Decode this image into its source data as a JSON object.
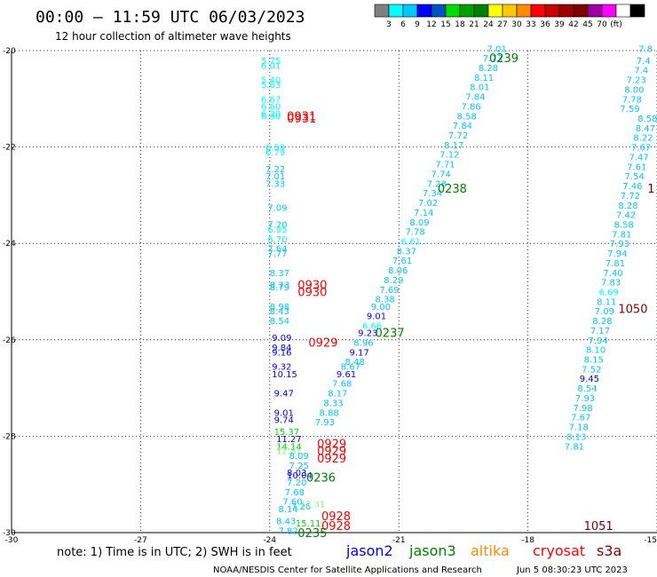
{
  "header": {
    "title": "00:00 — 11:59 UTC 06/03/2023",
    "subtitle": "12 hour collection of altimeter wave heights"
  },
  "colorbar": {
    "colors": [
      "#808080",
      "#00ffff",
      "#00c8ff",
      "#0000ff",
      "#0050c8",
      "#00dc00",
      "#00a000",
      "#008000",
      "#ffff00",
      "#ffc800",
      "#ff8c00",
      "#ff0000",
      "#c80000",
      "#a00000",
      "#800000",
      "#a000a0",
      "#ff00ff",
      "#ffffff",
      "#000000"
    ],
    "labels": [
      "3",
      "6",
      "9",
      "12",
      "15",
      "18",
      "21",
      "24",
      "27",
      "30",
      "33",
      "36",
      "39",
      "42",
      "45",
      "70",
      "(ft)"
    ]
  },
  "footer": {
    "note": "note: 1) Time is in UTC; 2) SWH is in feet",
    "satellites": [
      {
        "name": "jason2",
        "color": "#0000ff"
      },
      {
        "name": "jason3",
        "color": "#008000"
      },
      {
        "name": "altika",
        "color": "#ff8c00"
      },
      {
        "name": "cryosat",
        "color": "#ff0000"
      },
      {
        "name": "s3a",
        "color": "#800000"
      }
    ],
    "credit": "NOAA/NESDIS Center for Satellite Applications and Research",
    "generated": "Jun  5 08:30:23 UTC 2023"
  },
  "chart_data": {
    "type": "scatter",
    "title": "00:00 — 11:59 UTC 06/03/2023",
    "subtitle": "12 hour collection of altimeter wave heights",
    "xlim": [
      -30,
      -15
    ],
    "ylim": [
      -30,
      -20
    ],
    "xticks": [
      "-30",
      "-27",
      "-24",
      "-21",
      "-18",
      "-15"
    ],
    "yticks": [
      "-20",
      "-22",
      "-24",
      "-26",
      "-28",
      "-30"
    ],
    "grid": true,
    "observations": [
      {
        "x": -24.2,
        "y": -20.2,
        "v": "5.75",
        "c": "#00ffff"
      },
      {
        "x": -24.2,
        "y": -20.3,
        "v": "6.01",
        "c": "#00ffff"
      },
      {
        "x": -24.2,
        "y": -20.6,
        "v": "5.40",
        "c": "#00ffff"
      },
      {
        "x": -24.2,
        "y": -20.7,
        "v": "5.63",
        "c": "#00ffff"
      },
      {
        "x": -24.2,
        "y": -21.0,
        "v": "6.67",
        "c": "#00ffff"
      },
      {
        "x": -24.2,
        "y": -21.15,
        "v": "6.60",
        "c": "#00ffff"
      },
      {
        "x": -24.2,
        "y": -21.3,
        "v": "6.20",
        "c": "#00ffff"
      },
      {
        "x": -24.2,
        "y": -21.35,
        "v": "6.30",
        "c": "#00ffff"
      },
      {
        "x": -24.1,
        "y": -22.0,
        "v": "6.59",
        "c": "#00ffff"
      },
      {
        "x": -24.1,
        "y": -22.1,
        "v": "6.79",
        "c": "#00ffff"
      },
      {
        "x": -24.1,
        "y": -22.45,
        "v": "7.22",
        "c": "#00c8ff"
      },
      {
        "x": -24.1,
        "y": -22.6,
        "v": "7.01",
        "c": "#00c8ff"
      },
      {
        "x": -24.1,
        "y": -22.75,
        "v": "7.33",
        "c": "#00c8ff"
      },
      {
        "x": -24.05,
        "y": -23.25,
        "v": "7.09",
        "c": "#00c8ff"
      },
      {
        "x": -24.05,
        "y": -23.6,
        "v": "7.20",
        "c": "#00c8ff"
      },
      {
        "x": -24.05,
        "y": -23.7,
        "v": "6.95",
        "c": "#00ffff"
      },
      {
        "x": -24.05,
        "y": -23.9,
        "v": "6.70",
        "c": "#00ffff"
      },
      {
        "x": -24.05,
        "y": -24.1,
        "v": "7.64",
        "c": "#00c8ff"
      },
      {
        "x": -24.05,
        "y": -24.2,
        "v": "7.77",
        "c": "#00c8ff"
      },
      {
        "x": -24.0,
        "y": -24.6,
        "v": "8.37",
        "c": "#00c8ff"
      },
      {
        "x": -24.0,
        "y": -24.85,
        "v": "8.73",
        "c": "#00c8ff"
      },
      {
        "x": -24.0,
        "y": -24.9,
        "v": "8.79",
        "c": "#00c8ff"
      },
      {
        "x": -24.0,
        "y": -25.3,
        "v": "8.98",
        "c": "#00c8ff"
      },
      {
        "x": -24.0,
        "y": -25.4,
        "v": "8.43",
        "c": "#00c8ff"
      },
      {
        "x": -24.0,
        "y": -25.6,
        "v": "8.54",
        "c": "#00c8ff"
      },
      {
        "x": -23.95,
        "y": -25.95,
        "v": "9.09",
        "c": "#0000ff"
      },
      {
        "x": -23.95,
        "y": -26.15,
        "v": "9.84",
        "c": "#0000ff"
      },
      {
        "x": -23.95,
        "y": -26.25,
        "v": "9.16",
        "c": "#0000ff"
      },
      {
        "x": -23.95,
        "y": -26.55,
        "v": "9.32",
        "c": "#0000ff"
      },
      {
        "x": -23.95,
        "y": -26.7,
        "v": "10.15",
        "c": "#0000ff"
      },
      {
        "x": -23.9,
        "y": -27.1,
        "v": "9.47",
        "c": "#0000ff"
      },
      {
        "x": -23.9,
        "y": -27.5,
        "v": "9.01",
        "c": "#0000ff"
      },
      {
        "x": -23.9,
        "y": -27.65,
        "v": "9.74",
        "c": "#0000ff"
      },
      {
        "x": -23.9,
        "y": -27.9,
        "v": "15.37",
        "c": "#00dc00"
      },
      {
        "x": -23.85,
        "y": -28.05,
        "v": "11.27",
        "c": "#0000ff"
      },
      {
        "x": -23.85,
        "y": -28.2,
        "v": "14.14",
        "c": "#00dc00"
      },
      {
        "x": -23.85,
        "y": -28.3,
        "v": "12.81",
        "c": "#80ff80"
      },
      {
        "x": -23.55,
        "y": -28.4,
        "v": "8.09",
        "c": "#00c8ff"
      },
      {
        "x": -23.55,
        "y": -28.6,
        "v": "7.25",
        "c": "#00c8ff"
      },
      {
        "x": -23.6,
        "y": -28.75,
        "v": "8.03",
        "c": "#0000ff"
      },
      {
        "x": -23.6,
        "y": -28.8,
        "v": "10.04",
        "c": "#0000ff"
      },
      {
        "x": -23.6,
        "y": -28.95,
        "v": "7.20",
        "c": "#00c8ff"
      },
      {
        "x": -23.65,
        "y": -29.15,
        "v": "7.68",
        "c": "#00c8ff"
      },
      {
        "x": -23.7,
        "y": -29.35,
        "v": "7.60",
        "c": "#00c8ff"
      },
      {
        "x": -23.5,
        "y": -29.45,
        "v": "7.26",
        "c": "#00c8ff"
      },
      {
        "x": -23.8,
        "y": -29.5,
        "v": "8.14",
        "c": "#00c8ff"
      },
      {
        "x": -23.85,
        "y": -29.75,
        "v": "8.43",
        "c": "#00c8ff"
      },
      {
        "x": -23.4,
        "y": -29.8,
        "v": "15.11",
        "c": "#00dc00"
      },
      {
        "x": -23.8,
        "y": -29.95,
        "v": "7.82",
        "c": "#00c8ff"
      },
      {
        "x": -23.3,
        "y": -29.4,
        "v": "12.31",
        "c": "#80ff80"
      },
      {
        "x": -22.95,
        "y": -27.7,
        "v": "7.93",
        "c": "#00c8ff"
      },
      {
        "x": -22.85,
        "y": -27.5,
        "v": "8.88",
        "c": "#00c8ff"
      },
      {
        "x": -22.75,
        "y": -27.3,
        "v": "8.33",
        "c": "#00c8ff"
      },
      {
        "x": -22.65,
        "y": -27.1,
        "v": "8.17",
        "c": "#00c8ff"
      },
      {
        "x": -22.55,
        "y": -26.9,
        "v": "7.68",
        "c": "#00c8ff"
      },
      {
        "x": -22.45,
        "y": -26.7,
        "v": "9.61",
        "c": "#0000ff"
      },
      {
        "x": -22.35,
        "y": -26.55,
        "v": "8.67",
        "c": "#00c8ff"
      },
      {
        "x": -22.25,
        "y": -26.45,
        "v": "8.48",
        "c": "#00c8ff"
      },
      {
        "x": -22.15,
        "y": -26.25,
        "v": "9.17",
        "c": "#0000ff"
      },
      {
        "x": -22.05,
        "y": -26.05,
        "v": "8.96",
        "c": "#00c8ff"
      },
      {
        "x": -21.95,
        "y": -25.85,
        "v": "9.23",
        "c": "#0000ff"
      },
      {
        "x": -21.85,
        "y": -25.7,
        "v": "6.66",
        "c": "#00ffff"
      },
      {
        "x": -21.75,
        "y": -25.5,
        "v": "9.01",
        "c": "#0000ff"
      },
      {
        "x": -21.65,
        "y": -25.3,
        "v": "9.00",
        "c": "#00c8ff"
      },
      {
        "x": -21.55,
        "y": -25.15,
        "v": "8.38",
        "c": "#00c8ff"
      },
      {
        "x": -21.45,
        "y": -24.95,
        "v": "7.69",
        "c": "#00c8ff"
      },
      {
        "x": -21.35,
        "y": -24.75,
        "v": "8.29",
        "c": "#00c8ff"
      },
      {
        "x": -21.25,
        "y": -24.55,
        "v": "8.06",
        "c": "#00c8ff"
      },
      {
        "x": -21.15,
        "y": -24.35,
        "v": "7.61",
        "c": "#00c8ff"
      },
      {
        "x": -21.05,
        "y": -24.15,
        "v": "8.37",
        "c": "#00c8ff"
      },
      {
        "x": -20.95,
        "y": -23.95,
        "v": "6.61",
        "c": "#00ffff"
      },
      {
        "x": -20.85,
        "y": -23.75,
        "v": "7.78",
        "c": "#00c8ff"
      },
      {
        "x": -20.75,
        "y": -23.55,
        "v": "8.09",
        "c": "#00c8ff"
      },
      {
        "x": -20.65,
        "y": -23.35,
        "v": "7.14",
        "c": "#00c8ff"
      },
      {
        "x": -20.55,
        "y": -23.15,
        "v": "7.02",
        "c": "#00c8ff"
      },
      {
        "x": -20.45,
        "y": -22.95,
        "v": "7.34",
        "c": "#00c8ff"
      },
      {
        "x": -20.35,
        "y": -22.75,
        "v": "7.28",
        "c": "#00c8ff"
      },
      {
        "x": -20.25,
        "y": -22.55,
        "v": "7.74",
        "c": "#00c8ff"
      },
      {
        "x": -20.15,
        "y": -22.35,
        "v": "7.71",
        "c": "#00c8ff"
      },
      {
        "x": -20.05,
        "y": -22.15,
        "v": "7.12",
        "c": "#00c8ff"
      },
      {
        "x": -19.95,
        "y": -21.95,
        "v": "8.17",
        "c": "#00c8ff"
      },
      {
        "x": -19.85,
        "y": -21.75,
        "v": "7.72",
        "c": "#00c8ff"
      },
      {
        "x": -19.75,
        "y": -21.55,
        "v": "7.84",
        "c": "#00c8ff"
      },
      {
        "x": -19.65,
        "y": -21.35,
        "v": "8.58",
        "c": "#00c8ff"
      },
      {
        "x": -19.55,
        "y": -21.15,
        "v": "7.86",
        "c": "#00c8ff"
      },
      {
        "x": -19.45,
        "y": -20.95,
        "v": "7.84",
        "c": "#00c8ff"
      },
      {
        "x": -19.35,
        "y": -20.75,
        "v": "8.01",
        "c": "#00c8ff"
      },
      {
        "x": -19.25,
        "y": -20.55,
        "v": "8.11",
        "c": "#00c8ff"
      },
      {
        "x": -19.15,
        "y": -20.35,
        "v": "8.28",
        "c": "#00c8ff"
      },
      {
        "x": -19.05,
        "y": -20.15,
        "v": "7.73",
        "c": "#00c8ff"
      },
      {
        "x": -18.95,
        "y": -19.95,
        "v": "7.01",
        "c": "#00c8ff"
      },
      {
        "x": -15.1,
        "y": -19.95,
        "v": "7.8",
        "c": "#00c8ff"
      },
      {
        "x": -15.15,
        "y": -20.2,
        "v": "7.4",
        "c": "#00c8ff"
      },
      {
        "x": -15.2,
        "y": -20.4,
        "v": "7.4",
        "c": "#00c8ff"
      },
      {
        "x": -15.25,
        "y": -20.6,
        "v": "7.23",
        "c": "#00c8ff"
      },
      {
        "x": -15.3,
        "y": -20.8,
        "v": "8.00",
        "c": "#00c8ff"
      },
      {
        "x": -15.35,
        "y": -21.0,
        "v": "7.78",
        "c": "#00c8ff"
      },
      {
        "x": -15.4,
        "y": -21.2,
        "v": "7.59",
        "c": "#00c8ff"
      },
      {
        "x": -15.45,
        "y": -21.4,
        "v": "8.58",
        "c": "#00c8ff"
      },
      {
        "x": -15.5,
        "y": -21.6,
        "v": "8.47",
        "c": "#00c8ff"
      },
      {
        "x": -15.55,
        "y": -21.8,
        "v": "8.22",
        "c": "#00c8ff"
      },
      {
        "x": -15.6,
        "y": -22.0,
        "v": "7.67",
        "c": "#00c8ff"
      },
      {
        "x": -15.65,
        "y": -22.2,
        "v": "7.47",
        "c": "#00c8ff"
      },
      {
        "x": -15.7,
        "y": -22.4,
        "v": "7.61",
        "c": "#00c8ff"
      },
      {
        "x": -15.75,
        "y": -22.6,
        "v": "7.54",
        "c": "#00c8ff"
      },
      {
        "x": -15.8,
        "y": -22.8,
        "v": "7.46",
        "c": "#00c8ff"
      },
      {
        "x": -15.85,
        "y": -23.0,
        "v": "7.72",
        "c": "#00c8ff"
      },
      {
        "x": -15.9,
        "y": -23.2,
        "v": "8.28",
        "c": "#00c8ff"
      },
      {
        "x": -15.95,
        "y": -23.4,
        "v": "7.42",
        "c": "#00c8ff"
      },
      {
        "x": -16.0,
        "y": -23.6,
        "v": "8.58",
        "c": "#00c8ff"
      },
      {
        "x": -16.05,
        "y": -23.8,
        "v": "7.81",
        "c": "#00c8ff"
      },
      {
        "x": -16.1,
        "y": -24.0,
        "v": "7.93",
        "c": "#00c8ff"
      },
      {
        "x": -16.15,
        "y": -24.2,
        "v": "7.94",
        "c": "#00c8ff"
      },
      {
        "x": -16.2,
        "y": -24.4,
        "v": "7.81",
        "c": "#00c8ff"
      },
      {
        "x": -16.25,
        "y": -24.6,
        "v": "7.40",
        "c": "#00c8ff"
      },
      {
        "x": -16.3,
        "y": -24.8,
        "v": "7.83",
        "c": "#00c8ff"
      },
      {
        "x": -16.35,
        "y": -25.0,
        "v": "6.69",
        "c": "#00ffff"
      },
      {
        "x": -16.4,
        "y": -25.2,
        "v": "8.11",
        "c": "#00c8ff"
      },
      {
        "x": -16.45,
        "y": -25.4,
        "v": "7.09",
        "c": "#00c8ff"
      },
      {
        "x": -16.5,
        "y": -25.6,
        "v": "8.28",
        "c": "#00c8ff"
      },
      {
        "x": -16.55,
        "y": -25.8,
        "v": "7.17",
        "c": "#00c8ff"
      },
      {
        "x": -16.6,
        "y": -26.0,
        "v": "7.94",
        "c": "#00c8ff"
      },
      {
        "x": -16.65,
        "y": -26.2,
        "v": "8.10",
        "c": "#00c8ff"
      },
      {
        "x": -16.7,
        "y": -26.4,
        "v": "8.15",
        "c": "#00c8ff"
      },
      {
        "x": -16.75,
        "y": -26.6,
        "v": "7.52",
        "c": "#00c8ff"
      },
      {
        "x": -16.8,
        "y": -26.8,
        "v": "9.45",
        "c": "#0000ff"
      },
      {
        "x": -16.85,
        "y": -27.0,
        "v": "8.54",
        "c": "#00c8ff"
      },
      {
        "x": -16.9,
        "y": -27.2,
        "v": "7.93",
        "c": "#00c8ff"
      },
      {
        "x": -16.95,
        "y": -27.4,
        "v": "7.98",
        "c": "#00c8ff"
      },
      {
        "x": -17.0,
        "y": -27.6,
        "v": "7.67",
        "c": "#00c8ff"
      },
      {
        "x": -17.05,
        "y": -27.8,
        "v": "7.18",
        "c": "#00c8ff"
      },
      {
        "x": -17.1,
        "y": -28.0,
        "v": "8.13",
        "c": "#00c8ff"
      },
      {
        "x": -17.15,
        "y": -28.2,
        "v": "7.81",
        "c": "#00c8ff"
      }
    ],
    "time_labels": [
      {
        "x": -23.6,
        "y": -21.35,
        "t": "0931",
        "c": "#ff0000"
      },
      {
        "x": -23.6,
        "y": -21.4,
        "t": "0931",
        "c": "#ff0000"
      },
      {
        "x": -23.35,
        "y": -24.85,
        "t": "0930",
        "c": "#ff0000"
      },
      {
        "x": -23.35,
        "y": -25.0,
        "t": "0930",
        "c": "#ff0000"
      },
      {
        "x": -23.1,
        "y": -26.05,
        "t": "0929",
        "c": "#ff0000"
      },
      {
        "x": -22.9,
        "y": -28.15,
        "t": "0929",
        "c": "#ff0000"
      },
      {
        "x": -22.9,
        "y": -28.3,
        "t": "0929",
        "c": "#ff0000"
      },
      {
        "x": -22.9,
        "y": -28.45,
        "t": "0929",
        "c": "#ff0000"
      },
      {
        "x": -22.8,
        "y": -29.65,
        "t": "0928",
        "c": "#ff0000"
      },
      {
        "x": -22.8,
        "y": -29.85,
        "t": "0928",
        "c": "#ff0000"
      },
      {
        "x": -23.15,
        "y": -28.85,
        "t": "0236",
        "c": "#008000"
      },
      {
        "x": -23.35,
        "y": -30.0,
        "t": "0235",
        "c": "#008000"
      },
      {
        "x": -21.55,
        "y": -25.85,
        "t": "0237",
        "c": "#008000"
      },
      {
        "x": -20.1,
        "y": -22.85,
        "t": "0238",
        "c": "#008000"
      },
      {
        "x": -18.9,
        "y": -20.15,
        "t": "0239",
        "c": "#008000"
      },
      {
        "x": -15.9,
        "y": -25.35,
        "t": "1050",
        "c": "#800000"
      },
      {
        "x": -16.7,
        "y": -29.85,
        "t": "1051",
        "c": "#800000"
      },
      {
        "x": -15.05,
        "y": -22.85,
        "t": "1",
        "c": "#800000"
      }
    ]
  }
}
